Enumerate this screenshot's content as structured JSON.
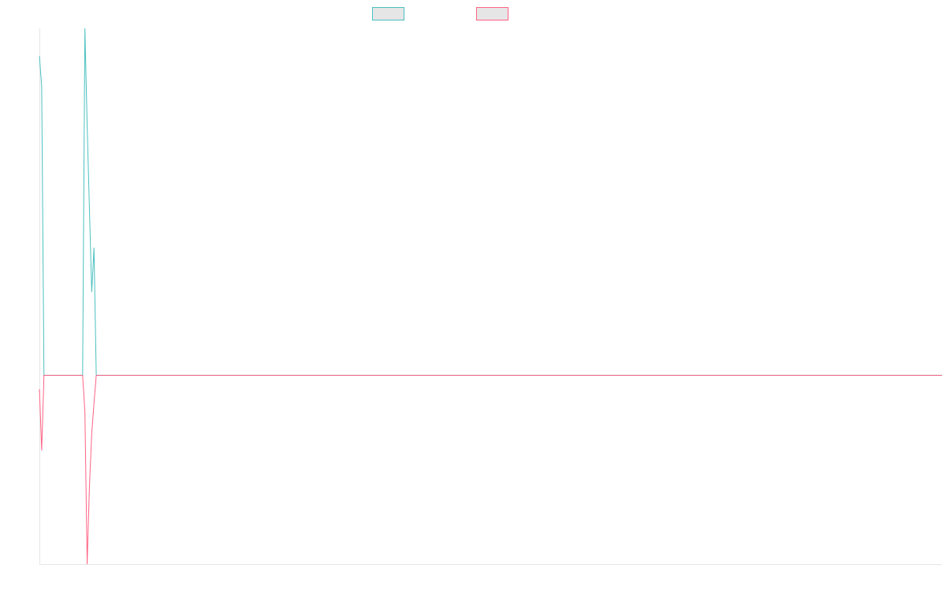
{
  "chart_data": {
    "type": "line",
    "title": "",
    "xlabel": "",
    "ylabel": "",
    "grid": false,
    "legend_position": "top-center",
    "x_count": 398,
    "ylim": [
      -68,
      125
    ],
    "series": [
      {
        "name": "",
        "color": "#4bc0c0",
        "fill": "#e6e6e6",
        "points": [
          [
            0,
            115
          ],
          [
            1,
            104
          ],
          [
            2,
            0
          ],
          [
            19,
            0
          ],
          [
            20,
            125
          ],
          [
            21,
            90
          ],
          [
            22,
            60
          ],
          [
            23,
            30
          ],
          [
            24,
            46
          ],
          [
            25,
            0
          ],
          [
            397,
            0
          ]
        ]
      },
      {
        "name": "",
        "color": "#ff6384",
        "fill": "#e6e6e6",
        "points": [
          [
            0,
            -5
          ],
          [
            1,
            -27
          ],
          [
            2,
            0
          ],
          [
            19,
            0
          ],
          [
            20,
            -13
          ],
          [
            21,
            -68
          ],
          [
            22,
            -40
          ],
          [
            23,
            -21
          ],
          [
            24,
            -10
          ],
          [
            25,
            0
          ],
          [
            397,
            0
          ]
        ]
      }
    ]
  }
}
